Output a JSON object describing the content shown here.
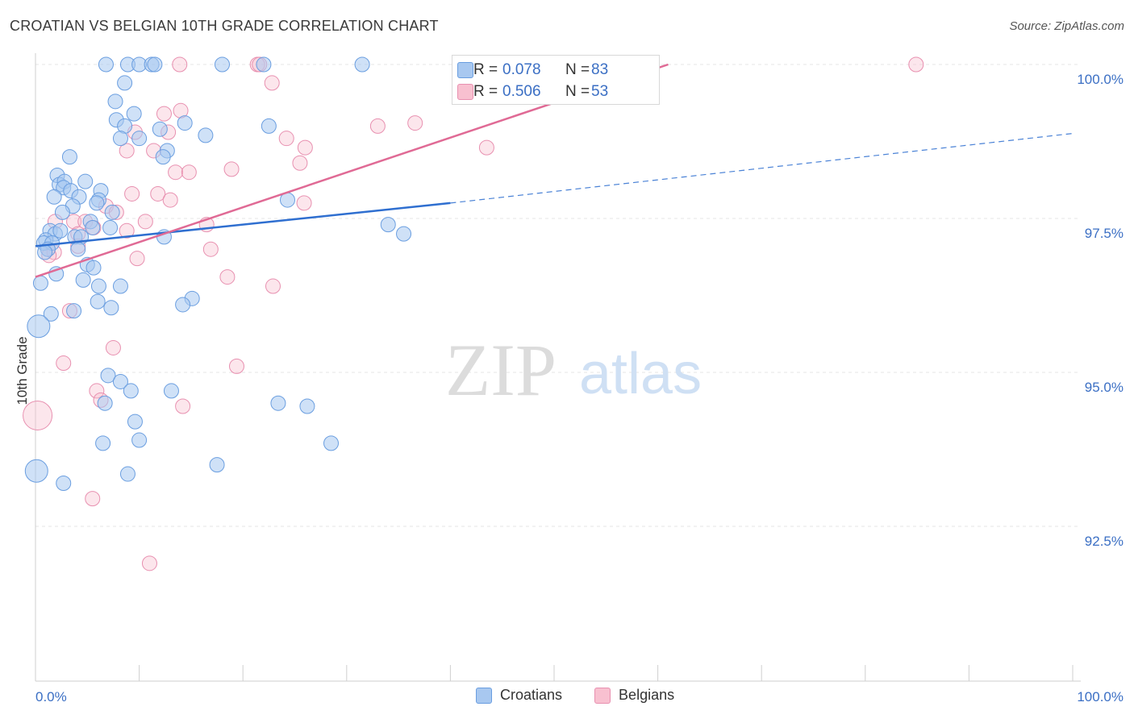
{
  "title": "CROATIAN VS BELGIAN 10TH GRADE CORRELATION CHART",
  "source": "Source: ZipAtlas.com",
  "watermark": {
    "zip": "ZIP",
    "atlas": "atlas"
  },
  "stats": [
    {
      "r_label": "R =",
      "r_value": "0.078",
      "n_label": "N =",
      "n_value": "83",
      "color": "#a8c8f0",
      "border": "#6a9ee0"
    },
    {
      "r_label": "R =",
      "r_value": "0.506",
      "n_label": "N =",
      "n_value": "53",
      "color": "#f8c0d0",
      "border": "#e890b0"
    }
  ],
  "legend": [
    {
      "label": "Croatians",
      "color": "#a8c8f0",
      "border": "#6a9ee0"
    },
    {
      "label": "Belgians",
      "color": "#f8c0d0",
      "border": "#e890b0"
    }
  ],
  "chart_data": {
    "type": "scatter",
    "title": "CROATIAN VS BELGIAN 10TH GRADE CORRELATION CHART",
    "xlabel": "",
    "ylabel": "10th Grade",
    "xlim": [
      0,
      100
    ],
    "ylim": [
      90.2,
      100.4
    ],
    "x_tick_labels": [
      {
        "value": 0,
        "label": "0.0%"
      },
      {
        "value": 100,
        "label": "100.0%"
      }
    ],
    "y_tick_labels": [
      {
        "value": 100.0,
        "label": "100.0%"
      },
      {
        "value": 97.5,
        "label": "97.5%"
      },
      {
        "value": 95.0,
        "label": "95.0%"
      },
      {
        "value": 92.5,
        "label": "92.5%"
      }
    ],
    "grid": "horizontal dashed",
    "legend_position": "bottom-center",
    "series": [
      {
        "name": "Croatians",
        "color": "#6a9ee0",
        "fill": "#a8c8f0",
        "trend": {
          "x0": 0,
          "y0": 97.05,
          "x1": 40,
          "y1": 97.75,
          "dash_to_x": 100,
          "dash_to_y": 98.88
        },
        "points": [
          [
            6.8,
            100
          ],
          [
            8.9,
            100
          ],
          [
            10.0,
            100
          ],
          [
            11.2,
            100
          ],
          [
            11.5,
            100
          ],
          [
            18.0,
            100
          ],
          [
            22.0,
            100
          ],
          [
            31.5,
            100
          ],
          [
            8.6,
            99.7
          ],
          [
            7.7,
            99.4
          ],
          [
            9.5,
            99.2
          ],
          [
            7.8,
            99.1
          ],
          [
            8.6,
            99.0
          ],
          [
            12.0,
            98.95
          ],
          [
            14.4,
            99.05
          ],
          [
            22.5,
            99.0
          ],
          [
            8.2,
            98.8
          ],
          [
            16.4,
            98.85
          ],
          [
            10.0,
            98.8
          ],
          [
            12.7,
            98.6
          ],
          [
            12.3,
            98.5
          ],
          [
            3.3,
            98.5
          ],
          [
            2.1,
            98.2
          ],
          [
            2.3,
            98.05
          ],
          [
            2.8,
            98.1
          ],
          [
            4.8,
            98.1
          ],
          [
            2.7,
            98.0
          ],
          [
            3.4,
            97.95
          ],
          [
            6.3,
            97.95
          ],
          [
            1.8,
            97.85
          ],
          [
            4.2,
            97.85
          ],
          [
            6.1,
            97.8
          ],
          [
            24.3,
            97.8
          ],
          [
            3.6,
            97.7
          ],
          [
            5.9,
            97.75
          ],
          [
            2.6,
            97.6
          ],
          [
            7.4,
            97.6
          ],
          [
            5.3,
            97.45
          ],
          [
            5.5,
            97.35
          ],
          [
            7.2,
            97.35
          ],
          [
            34.0,
            97.4
          ],
          [
            35.5,
            97.25
          ],
          [
            1.4,
            97.3
          ],
          [
            1.9,
            97.25
          ],
          [
            2.4,
            97.3
          ],
          [
            1.0,
            97.15
          ],
          [
            3.8,
            97.2
          ],
          [
            4.4,
            97.2
          ],
          [
            12.4,
            97.2
          ],
          [
            0.8,
            97.1
          ],
          [
            1.6,
            97.1
          ],
          [
            1.2,
            97.0
          ],
          [
            4.1,
            97.0
          ],
          [
            5.0,
            96.75
          ],
          [
            5.6,
            96.7
          ],
          [
            0.9,
            96.95
          ],
          [
            2.0,
            96.6
          ],
          [
            4.6,
            96.5
          ],
          [
            0.5,
            96.45
          ],
          [
            6.1,
            96.4
          ],
          [
            8.2,
            96.4
          ],
          [
            6.0,
            96.15
          ],
          [
            7.3,
            96.05
          ],
          [
            15.1,
            96.2
          ],
          [
            14.2,
            96.1
          ],
          [
            3.7,
            96.0
          ],
          [
            1.5,
            95.95
          ],
          [
            0.3,
            95.75
          ],
          [
            7.0,
            94.95
          ],
          [
            8.2,
            94.85
          ],
          [
            9.2,
            94.7
          ],
          [
            13.1,
            94.7
          ],
          [
            23.4,
            94.5
          ],
          [
            26.2,
            94.45
          ],
          [
            6.7,
            94.5
          ],
          [
            9.6,
            94.2
          ],
          [
            10.0,
            93.9
          ],
          [
            6.5,
            93.85
          ],
          [
            28.5,
            93.85
          ],
          [
            17.5,
            93.5
          ],
          [
            0.1,
            93.4
          ],
          [
            8.9,
            93.35
          ],
          [
            2.7,
            93.2
          ]
        ]
      },
      {
        "name": "Belgians",
        "color": "#e890b0",
        "fill": "#f8c0d0",
        "trend": {
          "x0": 0,
          "y0": 96.55,
          "x1": 61,
          "y1": 100.0
        },
        "points": [
          [
            13.9,
            100
          ],
          [
            21.4,
            100
          ],
          [
            21.6,
            100
          ],
          [
            49.5,
            100
          ],
          [
            84.9,
            100
          ],
          [
            22.8,
            99.7
          ],
          [
            12.4,
            99.2
          ],
          [
            33.0,
            99.0
          ],
          [
            36.6,
            99.05
          ],
          [
            12.8,
            98.9
          ],
          [
            9.6,
            98.9
          ],
          [
            24.2,
            98.8
          ],
          [
            8.8,
            98.6
          ],
          [
            11.4,
            98.6
          ],
          [
            26.0,
            98.65
          ],
          [
            43.5,
            98.65
          ],
          [
            25.5,
            98.4
          ],
          [
            13.5,
            98.25
          ],
          [
            14.8,
            98.25
          ],
          [
            18.9,
            98.3
          ],
          [
            9.3,
            97.9
          ],
          [
            11.8,
            97.9
          ],
          [
            13.0,
            97.8
          ],
          [
            25.9,
            97.75
          ],
          [
            6.8,
            97.7
          ],
          [
            7.8,
            97.6
          ],
          [
            1.9,
            97.45
          ],
          [
            3.7,
            97.45
          ],
          [
            4.8,
            97.45
          ],
          [
            10.6,
            97.45
          ],
          [
            16.5,
            97.4
          ],
          [
            8.8,
            97.3
          ],
          [
            4.1,
            97.25
          ],
          [
            5.6,
            97.35
          ],
          [
            4.1,
            97.05
          ],
          [
            1.2,
            97.0
          ],
          [
            1.8,
            96.95
          ],
          [
            16.9,
            97.0
          ],
          [
            1.3,
            96.9
          ],
          [
            9.8,
            96.85
          ],
          [
            18.5,
            96.55
          ],
          [
            22.9,
            96.4
          ],
          [
            3.3,
            96.0
          ],
          [
            7.5,
            95.4
          ],
          [
            2.7,
            95.15
          ],
          [
            19.4,
            95.1
          ],
          [
            5.9,
            94.7
          ],
          [
            6.3,
            94.55
          ],
          [
            14.2,
            94.45
          ],
          [
            0.2,
            94.3
          ],
          [
            5.5,
            92.95
          ],
          [
            11.0,
            91.9
          ],
          [
            14.0,
            99.25
          ]
        ]
      }
    ]
  }
}
